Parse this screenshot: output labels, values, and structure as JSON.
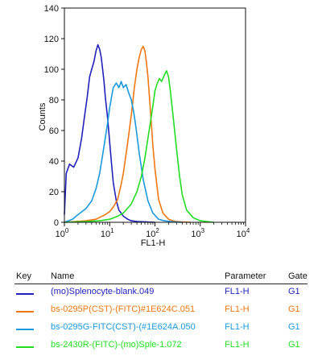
{
  "chart_data": {
    "type": "line",
    "xlabel": "FL1-H",
    "ylabel": "Counts",
    "xscale": "log",
    "xlim": [
      1,
      10000
    ],
    "ylim": [
      0,
      140
    ],
    "y_ticks": [
      0,
      20,
      40,
      60,
      80,
      100,
      120,
      140
    ],
    "x_ticks": [
      {
        "base": "10",
        "exp": "0"
      },
      {
        "base": "10",
        "exp": "1"
      },
      {
        "base": "10",
        "exp": "2"
      },
      {
        "base": "10",
        "exp": "3"
      },
      {
        "base": "10",
        "exp": "4"
      }
    ],
    "series": [
      {
        "name": "(mo)Splenocyte-blank.049",
        "color": "#2222bb",
        "x": [
          1,
          1.1,
          1.3,
          1.6,
          2,
          2.4,
          2.8,
          3.2,
          3.6,
          4,
          4.5,
          5,
          5.5,
          6,
          6.5,
          7,
          7.5,
          8,
          9,
          10,
          11,
          12,
          14,
          16,
          20,
          25,
          30,
          40,
          60,
          100
        ],
        "y": [
          5,
          32,
          38,
          36,
          42,
          55,
          70,
          82,
          95,
          100,
          105,
          112,
          116,
          113,
          108,
          100,
          92,
          82,
          68,
          52,
          38,
          26,
          14,
          8,
          4,
          2,
          1,
          0.5,
          0.3,
          0
        ]
      },
      {
        "name": "bs-0295P(CST)-(FITC)#1E624C.051",
        "color": "#ee7711",
        "x": [
          1,
          3,
          5,
          8,
          10,
          12,
          15,
          18,
          20,
          25,
          30,
          35,
          40,
          45,
          50,
          55,
          60,
          65,
          70,
          80,
          90,
          100,
          120,
          150,
          200,
          250,
          300,
          400,
          600
        ],
        "y": [
          0,
          1,
          2,
          5,
          7,
          10,
          15,
          25,
          32,
          52,
          70,
          88,
          100,
          108,
          113,
          115,
          112,
          104,
          95,
          72,
          50,
          35,
          15,
          6,
          2,
          1,
          0.5,
          0.2,
          0
        ]
      },
      {
        "name": "bs-0295G-FITC(CST)-(#1E624A.050",
        "color": "#1a99dd",
        "x": [
          1,
          1.5,
          2,
          3,
          4,
          5,
          6,
          7,
          8,
          9,
          10,
          11,
          12,
          14,
          16,
          18,
          20,
          23,
          26,
          30,
          34,
          38,
          45,
          55,
          70,
          90,
          120,
          160,
          250,
          400
        ],
        "y": [
          0,
          2,
          5,
          9,
          14,
          22,
          32,
          44,
          55,
          65,
          75,
          82,
          88,
          91,
          88,
          92,
          88,
          90,
          85,
          80,
          72,
          62,
          45,
          28,
          14,
          6,
          2,
          1,
          0.3,
          0
        ]
      },
      {
        "name": "bs-2430R-(FITC)-(mo)Sple-1.072",
        "color": "#22dd22",
        "x": [
          1,
          3,
          6,
          10,
          15,
          20,
          30,
          40,
          50,
          60,
          70,
          80,
          90,
          100,
          110,
          125,
          140,
          160,
          180,
          200,
          220,
          250,
          300,
          350,
          400,
          500,
          700,
          1000,
          2000
        ],
        "y": [
          0,
          0.5,
          1,
          2,
          4,
          6,
          12,
          20,
          30,
          42,
          55,
          66,
          76,
          86,
          90,
          94,
          92,
          96,
          99,
          95,
          85,
          70,
          48,
          30,
          18,
          8,
          3,
          1,
          0
        ]
      }
    ]
  },
  "legend": {
    "headers": {
      "key": "Key",
      "name": "Name",
      "parameter": "Parameter",
      "gate": "Gate"
    },
    "rows": [
      {
        "name": "(mo)Splenocyte-blank.049",
        "parameter": "FL1-H",
        "gate": "G1",
        "color": "#2222bb"
      },
      {
        "name": "bs-0295P(CST)-(FITC)#1E624C.051",
        "parameter": "FL1-H",
        "gate": "G1",
        "color": "#ee7711"
      },
      {
        "name": "bs-0295G-FITC(CST)-(#1E624A.050",
        "parameter": "FL1-H",
        "gate": "G1",
        "color": "#1a99dd"
      },
      {
        "name": "bs-2430R-(FITC)-(mo)Sple-1.072",
        "parameter": "FL1-H",
        "gate": "G1",
        "color": "#22dd22"
      }
    ]
  }
}
